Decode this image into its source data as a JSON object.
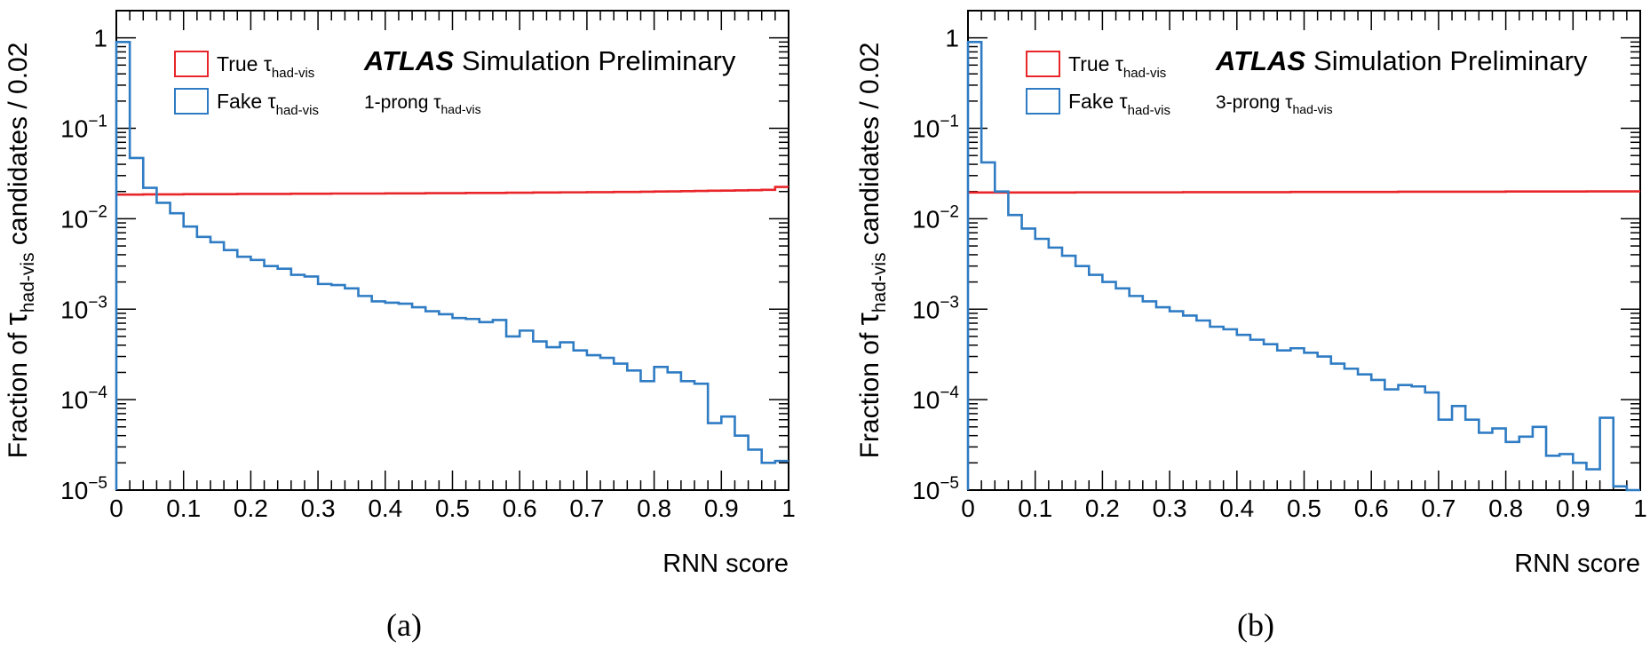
{
  "figure": {
    "panels": [
      {
        "caption": "(a)",
        "atlas_label": "ATLAS",
        "atlas_sub": "Simulation Preliminary",
        "prong_prefix": "1-prong ",
        "ylabel_prefix": "Fraction of ",
        "ylabel_suffix": "candidates / 0.02"
      },
      {
        "caption": "(b)",
        "atlas_label": "ATLAS",
        "atlas_sub": "Simulation Preliminary",
        "prong_prefix": "3-prong ",
        "ylabel_prefix": "Fraction of ",
        "ylabel_suffix": "candidates / 0.02"
      }
    ],
    "tau_symbol": "τ",
    "tau_subscript": "had-vis",
    "legend_true_prefix": "True ",
    "legend_fake_prefix": "Fake ",
    "colors": {
      "true": "#e8262a",
      "fake": "#2f7cc4",
      "frame": "#000000"
    }
  },
  "chart_data": [
    {
      "type": "histogram",
      "xlabel": "RNN score",
      "x_ticks": [
        "0",
        "0.1",
        "0.2",
        "0.3",
        "0.4",
        "0.5",
        "0.6",
        "0.7",
        "0.8",
        "0.9",
        "1"
      ],
      "xlim": [
        0,
        1
      ],
      "yscale": "log",
      "ylim": [
        1e-05,
        2
      ],
      "y_tick_labels": [
        {
          "value": 1,
          "base": "1",
          "exp": ""
        },
        {
          "value": 0.1,
          "base": "10",
          "exp": "−1"
        },
        {
          "value": 0.01,
          "base": "10",
          "exp": "−2"
        },
        {
          "value": 0.001,
          "base": "10",
          "exp": "−3"
        },
        {
          "value": 0.0001,
          "base": "10",
          "exp": "−4"
        },
        {
          "value": 1e-05,
          "base": "10",
          "exp": "−5"
        }
      ],
      "bin_width": 0.02,
      "legend_placement": "top-left",
      "series": [
        {
          "name": "True τhad-vis",
          "values": [
            0.0185,
            0.0185,
            0.0186,
            0.0186,
            0.0186,
            0.0187,
            0.0187,
            0.0187,
            0.0187,
            0.0188,
            0.0188,
            0.0188,
            0.0188,
            0.0189,
            0.0189,
            0.0189,
            0.019,
            0.019,
            0.019,
            0.019,
            0.0191,
            0.0191,
            0.0191,
            0.0192,
            0.0192,
            0.0192,
            0.0193,
            0.0193,
            0.0193,
            0.0194,
            0.0194,
            0.0195,
            0.0195,
            0.0196,
            0.0196,
            0.0197,
            0.0197,
            0.0198,
            0.0198,
            0.0199,
            0.02,
            0.0201,
            0.0202,
            0.0203,
            0.0204,
            0.0205,
            0.0206,
            0.0207,
            0.0209,
            0.0225
          ]
        },
        {
          "name": "Fake τhad-vis",
          "values": [
            0.9,
            0.047,
            0.022,
            0.015,
            0.0115,
            0.0082,
            0.0063,
            0.0055,
            0.0045,
            0.0038,
            0.0035,
            0.003,
            0.0028,
            0.0024,
            0.0023,
            0.0019,
            0.00185,
            0.0017,
            0.0014,
            0.00122,
            0.00118,
            0.00115,
            0.00105,
            0.00095,
            0.00088,
            0.0008,
            0.00078,
            0.00072,
            0.00076,
            0.0005,
            0.00058,
            0.00044,
            0.00038,
            0.00043,
            0.00035,
            0.00031,
            0.00029,
            0.00025,
            0.00021,
            0.00016,
            0.00023,
            0.0002,
            0.00016,
            0.00015,
            5.5e-05,
            6.5e-05,
            4e-05,
            2.8e-05,
            2e-05,
            2.1e-05
          ]
        }
      ]
    },
    {
      "type": "histogram",
      "xlabel": "RNN score",
      "x_ticks": [
        "0",
        "0.1",
        "0.2",
        "0.3",
        "0.4",
        "0.5",
        "0.6",
        "0.7",
        "0.8",
        "0.9",
        "1"
      ],
      "xlim": [
        0,
        1
      ],
      "yscale": "log",
      "ylim": [
        1e-05,
        2
      ],
      "y_tick_labels": [
        {
          "value": 1,
          "base": "1",
          "exp": ""
        },
        {
          "value": 0.1,
          "base": "10",
          "exp": "−1"
        },
        {
          "value": 0.01,
          "base": "10",
          "exp": "−2"
        },
        {
          "value": 0.001,
          "base": "10",
          "exp": "−3"
        },
        {
          "value": 0.0001,
          "base": "10",
          "exp": "−4"
        },
        {
          "value": 1e-05,
          "base": "10",
          "exp": "−5"
        }
      ],
      "bin_width": 0.02,
      "legend_placement": "top-left",
      "series": [
        {
          "name": "True τhad-vis",
          "values": [
            0.0195,
            0.0195,
            0.0195,
            0.0195,
            0.0195,
            0.0195,
            0.0195,
            0.0195,
            0.0196,
            0.0196,
            0.0196,
            0.0196,
            0.0196,
            0.0196,
            0.0196,
            0.0196,
            0.0197,
            0.0197,
            0.0197,
            0.0197,
            0.0197,
            0.0197,
            0.0197,
            0.0197,
            0.0198,
            0.0198,
            0.0198,
            0.0198,
            0.0198,
            0.0198,
            0.0198,
            0.0198,
            0.0199,
            0.0199,
            0.0199,
            0.0199,
            0.0199,
            0.0199,
            0.0199,
            0.0199,
            0.02,
            0.02,
            0.02,
            0.02,
            0.02,
            0.02,
            0.0201,
            0.0201,
            0.0201,
            0.0201
          ]
        },
        {
          "name": "Fake τhad-vis",
          "values": [
            0.9,
            0.042,
            0.02,
            0.011,
            0.0078,
            0.006,
            0.0048,
            0.0039,
            0.003,
            0.0024,
            0.002,
            0.0017,
            0.0014,
            0.00122,
            0.00105,
            0.00095,
            0.00085,
            0.00075,
            0.00064,
            0.0006,
            0.00052,
            0.00046,
            0.00041,
            0.00035,
            0.00037,
            0.00033,
            0.0003,
            0.00025,
            0.00022,
            0.00019,
            0.000165,
            0.00013,
            0.000145,
            0.00014,
            0.00012,
            6e-05,
            8.5e-05,
            6e-05,
            4.3e-05,
            4.8e-05,
            3.4e-05,
            3.9e-05,
            5e-05,
            2.4e-05,
            2.5e-05,
            2e-05,
            1.7e-05,
            6.3e-05,
            1.1e-05,
            1e-05
          ]
        }
      ]
    }
  ]
}
